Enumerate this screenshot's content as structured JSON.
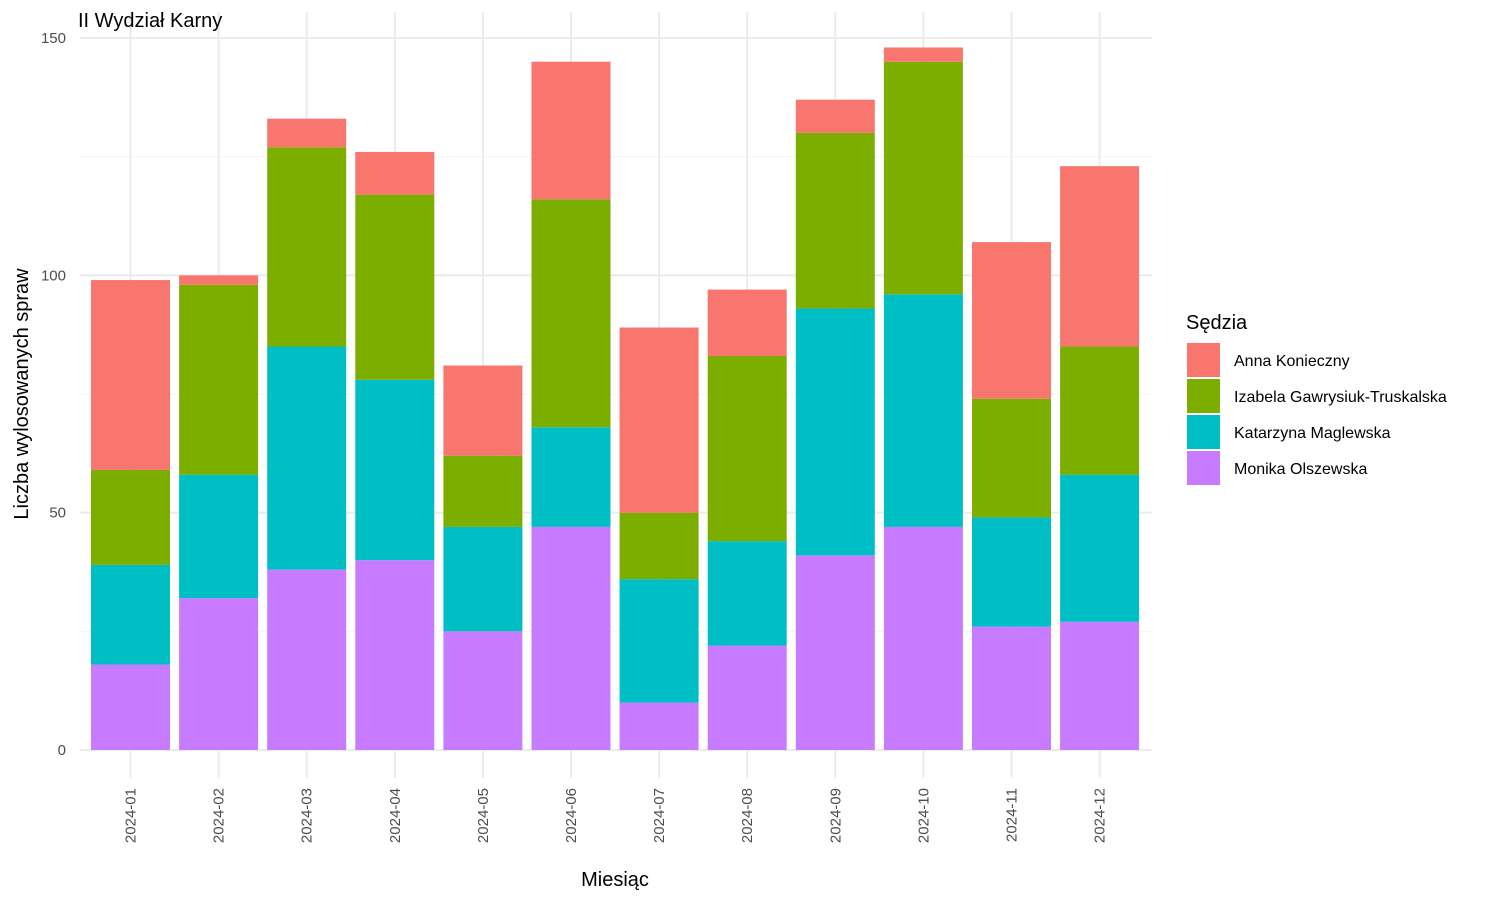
{
  "chart_data": {
    "type": "bar",
    "stacked": true,
    "title": "II Wydział Karny",
    "xlabel": "Miesiąc",
    "ylabel": "Liczba wylosowanych spraw",
    "ylim": [
      0,
      150
    ],
    "yticks": [
      0,
      50,
      100,
      150
    ],
    "grid": true,
    "legend_position": "right",
    "legend_title": "Sędzia",
    "categories": [
      "2024-01",
      "2024-02",
      "2024-03",
      "2024-04",
      "2024-05",
      "2024-06",
      "2024-07",
      "2024-08",
      "2024-09",
      "2024-10",
      "2024-11",
      "2024-12"
    ],
    "series": [
      {
        "name": "Monika Olszewska",
        "color": "#C77CFF",
        "values": [
          18,
          32,
          38,
          40,
          25,
          47,
          10,
          22,
          41,
          47,
          26,
          27
        ]
      },
      {
        "name": "Katarzyna Maglewska",
        "color": "#00BFC4",
        "values": [
          21,
          26,
          47,
          38,
          22,
          21,
          26,
          22,
          52,
          49,
          23,
          31
        ]
      },
      {
        "name": "Izabela Gawrysiuk-Truskalska",
        "color": "#7CAE00",
        "values": [
          20,
          40,
          42,
          39,
          15,
          48,
          14,
          39,
          37,
          49,
          25,
          27
        ]
      },
      {
        "name": "Anna Konieczny",
        "color": "#F8766D",
        "values": [
          40,
          2,
          6,
          9,
          19,
          29,
          39,
          14,
          7,
          3,
          33,
          38
        ]
      }
    ],
    "legend_order": [
      "Anna Konieczny",
      "Izabela Gawrysiuk-Truskalska",
      "Katarzyna Maglewska",
      "Monika Olszewska"
    ]
  }
}
